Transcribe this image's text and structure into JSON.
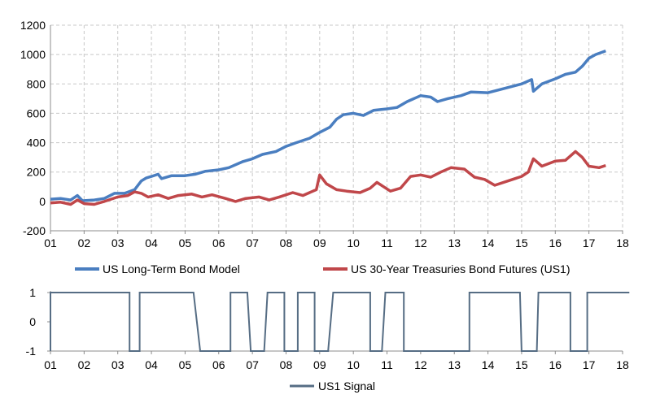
{
  "chart_data": [
    {
      "type": "line",
      "title": "",
      "xlabel": "",
      "ylabel": "",
      "x_tick_labels": [
        "01",
        "02",
        "03",
        "04",
        "05",
        "06",
        "07",
        "08",
        "09",
        "10",
        "11",
        "12",
        "13",
        "14",
        "15",
        "16",
        "17",
        "18"
      ],
      "y_tick_labels": [
        "1200",
        "1000",
        "800",
        "600",
        "400",
        "200",
        "0",
        "-200"
      ],
      "ylim": [
        -200,
        1200
      ],
      "xlim": [
        2001.0,
        2018.0
      ],
      "grid": true,
      "legend_position": "bottom",
      "series": [
        {
          "name": "US Long-Term Bond Model",
          "color": "#4a7ec0",
          "points": [
            [
              2001.0,
              15
            ],
            [
              2001.3,
              20
            ],
            [
              2001.6,
              10
            ],
            [
              2001.8,
              40
            ],
            [
              2001.95,
              5
            ],
            [
              2002.3,
              10
            ],
            [
              2002.6,
              20
            ],
            [
              2002.9,
              55
            ],
            [
              2003.2,
              55
            ],
            [
              2003.5,
              80
            ],
            [
              2003.7,
              140
            ],
            [
              2003.85,
              160
            ],
            [
              2004.0,
              170
            ],
            [
              2004.2,
              185
            ],
            [
              2004.3,
              155
            ],
            [
              2004.6,
              175
            ],
            [
              2005.0,
              175
            ],
            [
              2005.3,
              185
            ],
            [
              2005.6,
              205
            ],
            [
              2006.0,
              215
            ],
            [
              2006.3,
              230
            ],
            [
              2006.7,
              270
            ],
            [
              2007.0,
              290
            ],
            [
              2007.3,
              320
            ],
            [
              2007.7,
              340
            ],
            [
              2008.0,
              375
            ],
            [
              2008.3,
              400
            ],
            [
              2008.7,
              430
            ],
            [
              2009.0,
              470
            ],
            [
              2009.3,
              505
            ],
            [
              2009.5,
              560
            ],
            [
              2009.7,
              590
            ],
            [
              2010.0,
              600
            ],
            [
              2010.3,
              585
            ],
            [
              2010.6,
              620
            ],
            [
              2011.0,
              630
            ],
            [
              2011.3,
              640
            ],
            [
              2011.6,
              680
            ],
            [
              2012.0,
              720
            ],
            [
              2012.3,
              710
            ],
            [
              2012.5,
              680
            ],
            [
              2012.8,
              700
            ],
            [
              2013.2,
              720
            ],
            [
              2013.5,
              745
            ],
            [
              2014.0,
              740
            ],
            [
              2014.5,
              770
            ],
            [
              2015.0,
              800
            ],
            [
              2015.3,
              830
            ],
            [
              2015.35,
              750
            ],
            [
              2015.6,
              800
            ],
            [
              2016.0,
              835
            ],
            [
              2016.3,
              865
            ],
            [
              2016.6,
              880
            ],
            [
              2016.8,
              920
            ],
            [
              2017.0,
              975
            ],
            [
              2017.2,
              1000
            ],
            [
              2017.5,
              1025
            ]
          ]
        },
        {
          "name": "US 30-Year Treasuries Bond Futures (US1)",
          "color": "#c0474a",
          "points": [
            [
              2001.0,
              -10
            ],
            [
              2001.3,
              -5
            ],
            [
              2001.6,
              -20
            ],
            [
              2001.8,
              10
            ],
            [
              2002.0,
              -15
            ],
            [
              2002.3,
              -20
            ],
            [
              2002.6,
              0
            ],
            [
              2003.0,
              30
            ],
            [
              2003.3,
              40
            ],
            [
              2003.5,
              65
            ],
            [
              2003.7,
              55
            ],
            [
              2003.9,
              30
            ],
            [
              2004.2,
              45
            ],
            [
              2004.5,
              20
            ],
            [
              2004.8,
              40
            ],
            [
              2005.2,
              50
            ],
            [
              2005.5,
              30
            ],
            [
              2005.8,
              45
            ],
            [
              2006.2,
              20
            ],
            [
              2006.5,
              0
            ],
            [
              2006.8,
              20
            ],
            [
              2007.2,
              30
            ],
            [
              2007.5,
              10
            ],
            [
              2007.8,
              30
            ],
            [
              2008.2,
              60
            ],
            [
              2008.5,
              40
            ],
            [
              2008.9,
              80
            ],
            [
              2009.0,
              180
            ],
            [
              2009.2,
              120
            ],
            [
              2009.5,
              80
            ],
            [
              2009.8,
              70
            ],
            [
              2010.2,
              60
            ],
            [
              2010.5,
              90
            ],
            [
              2010.7,
              130
            ],
            [
              2010.9,
              100
            ],
            [
              2011.1,
              70
            ],
            [
              2011.4,
              90
            ],
            [
              2011.7,
              170
            ],
            [
              2012.0,
              180
            ],
            [
              2012.3,
              165
            ],
            [
              2012.6,
              200
            ],
            [
              2012.9,
              230
            ],
            [
              2013.3,
              220
            ],
            [
              2013.6,
              165
            ],
            [
              2013.9,
              150
            ],
            [
              2014.2,
              110
            ],
            [
              2014.6,
              140
            ],
            [
              2015.0,
              170
            ],
            [
              2015.2,
              200
            ],
            [
              2015.35,
              290
            ],
            [
              2015.6,
              240
            ],
            [
              2016.0,
              275
            ],
            [
              2016.3,
              280
            ],
            [
              2016.6,
              340
            ],
            [
              2016.8,
              300
            ],
            [
              2017.0,
              240
            ],
            [
              2017.3,
              230
            ],
            [
              2017.5,
              245
            ]
          ]
        }
      ]
    },
    {
      "type": "line",
      "title": "",
      "xlabel": "",
      "ylabel": "",
      "x_tick_labels": [
        "01",
        "02",
        "03",
        "04",
        "05",
        "06",
        "07",
        "08",
        "09",
        "10",
        "11",
        "12",
        "13",
        "14",
        "15",
        "16",
        "17",
        "18"
      ],
      "y_tick_labels": [
        "1",
        "0",
        "-1"
      ],
      "ylim": [
        -1,
        1
      ],
      "xlim": [
        2001.0,
        2018.0
      ],
      "grid": false,
      "legend_position": "bottom",
      "series": [
        {
          "name": "US1 Signal",
          "color": "#566d84",
          "points": [
            [
              2001.0,
              -1
            ],
            [
              2001.0,
              1
            ],
            [
              2003.35,
              1
            ],
            [
              2003.35,
              -1
            ],
            [
              2003.65,
              -1
            ],
            [
              2003.65,
              1
            ],
            [
              2005.25,
              1
            ],
            [
              2005.45,
              -1
            ],
            [
              2006.35,
              -1
            ],
            [
              2006.35,
              1
            ],
            [
              2006.85,
              1
            ],
            [
              2006.95,
              -1
            ],
            [
              2007.35,
              -1
            ],
            [
              2007.45,
              1
            ],
            [
              2007.95,
              1
            ],
            [
              2007.95,
              -1
            ],
            [
              2008.35,
              -1
            ],
            [
              2008.35,
              1
            ],
            [
              2008.85,
              1
            ],
            [
              2008.85,
              -1
            ],
            [
              2009.25,
              -1
            ],
            [
              2009.4,
              1
            ],
            [
              2010.5,
              1
            ],
            [
              2010.5,
              -1
            ],
            [
              2010.85,
              -1
            ],
            [
              2010.95,
              1
            ],
            [
              2011.5,
              1
            ],
            [
              2011.5,
              -1
            ],
            [
              2013.45,
              -1
            ],
            [
              2013.45,
              1
            ],
            [
              2014.95,
              1
            ],
            [
              2015.0,
              -1
            ],
            [
              2015.45,
              -1
            ],
            [
              2015.5,
              1
            ],
            [
              2016.45,
              1
            ],
            [
              2016.45,
              -1
            ],
            [
              2016.95,
              -1
            ],
            [
              2016.95,
              1
            ],
            [
              2018.2,
              1
            ]
          ]
        }
      ]
    }
  ]
}
